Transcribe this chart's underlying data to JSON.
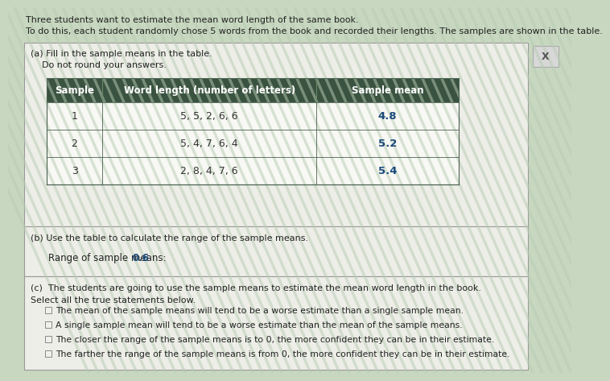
{
  "title_line1": "Three students want to estimate the mean word length of the same book.",
  "title_line2": "To do this, each student randomly chose 5 words from the book and recorded their lengths. The samples are shown in the table.",
  "part_a_title": "(a) Fill in the sample means in the table.",
  "part_a_subtitle": "    Do not round your answers.",
  "table_headers": [
    "Sample",
    "Word length (number of letters)",
    "Sample mean"
  ],
  "table_rows": [
    [
      "1",
      "5, 5, 2, 6, 6",
      "4.8"
    ],
    [
      "2",
      "5, 4, 7, 6, 4",
      "5.2"
    ],
    [
      "3",
      "2, 8, 4, 7, 6",
      "5.4"
    ]
  ],
  "header_bg": "#3a5240",
  "header_text_color": "#ffffff",
  "table_border_color": "#4a6250",
  "part_b_title": "(b) Use the table to calculate the range of the sample means.",
  "part_b_answer_label": "Range of sample means: ",
  "part_b_answer": "0.6",
  "part_c_title": "(c)  The students are going to use the sample means to estimate the mean word length in the book.",
  "part_c_subtitle": "Select all the true statements below.",
  "statements": [
    "The mean of the sample means will tend to be a worse estimate than a single sample mean.",
    "A single sample mean will tend to be a worse estimate than the mean of the sample means.",
    "The closer the range of the sample means is to 0, the more confident they can be in their estimate.",
    "The farther the range of the sample means is from 0, the more confident they can be in their estimate."
  ],
  "stripe_bg": "#c8d8c0",
  "panel_bg": "#eeeee8",
  "answer_color": "#1a4a7a",
  "x_btn_color": "#d8d8d8"
}
